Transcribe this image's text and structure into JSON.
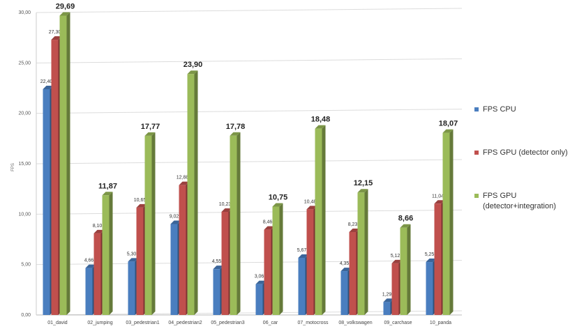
{
  "chart_data": {
    "type": "bar",
    "title": "",
    "xlabel": "",
    "ylabel": "FPS",
    "ylim": [
      0,
      30
    ],
    "yticks": [
      "0,00",
      "5,00",
      "10,00",
      "15,00",
      "20,00",
      "25,00",
      "30,00"
    ],
    "grid": true,
    "legend_position": "right",
    "categories": [
      "01_david",
      "02_jumping",
      "03_pedestrian1",
      "04_pedestrian2",
      "05_pedestrian3",
      "06_car",
      "07_motocross",
      "08_volkswagen",
      "09_carchase",
      "10_panda"
    ],
    "series": [
      {
        "name": "FPS CPU",
        "color": "#4a7ebf",
        "values": [
          22.4,
          4.66,
          5.3,
          9.02,
          4.55,
          3.06,
          5.67,
          4.35,
          1.29,
          5.25
        ],
        "labels": [
          "22,40",
          "4,66",
          "5,30",
          "9,02",
          "4,55",
          "3,06",
          "5,67",
          "4,35",
          "1,29",
          "5,25"
        ]
      },
      {
        "name": "FPS GPU (detector only)",
        "color": "#c0504d",
        "values": [
          27.3,
          8.1,
          10.65,
          12.88,
          10.23,
          8.46,
          10.48,
          8.23,
          5.12,
          11.04
        ],
        "labels": [
          "27,30",
          "8,10",
          "10,65",
          "12,88",
          "10,23",
          "8,46",
          "10,48",
          "8,23",
          "5,12",
          "11,04"
        ]
      },
      {
        "name": "FPS GPU\n(detector+integration)",
        "color": "#9bbb59",
        "values": [
          29.69,
          11.87,
          17.77,
          23.9,
          17.78,
          10.75,
          18.48,
          12.15,
          8.66,
          18.07
        ],
        "labels": [
          "29,69",
          "11,87",
          "17,77",
          "23,90",
          "17,78",
          "10,75",
          "18,48",
          "12,15",
          "8,66",
          "18,07"
        ]
      }
    ]
  }
}
